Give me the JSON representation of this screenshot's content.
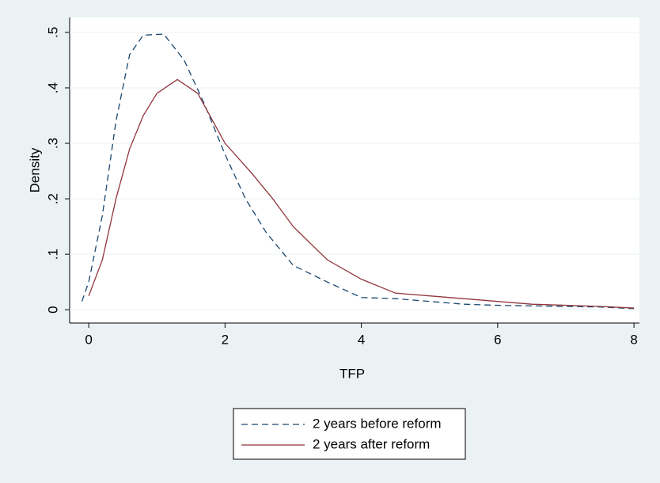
{
  "chart_data": {
    "type": "line",
    "x_label": "TFP",
    "y_label": "Density",
    "xlim": [
      -0.28,
      8.08
    ],
    "ylim": [
      -0.024,
      0.527
    ],
    "xticks": [
      0,
      2,
      4,
      6,
      8
    ],
    "yticks": [
      0,
      {
        "value": 0.1,
        "label": ".1"
      },
      {
        "value": 0.2,
        "label": ".2"
      },
      {
        "value": 0.3,
        "label": ".3"
      },
      {
        "value": 0.4,
        "label": ".4"
      },
      {
        "value": 0.5,
        "label": ".5"
      }
    ],
    "grid": true,
    "legend": "bottom",
    "series": [
      {
        "name": "2 years before reform",
        "color": "#1a476f",
        "dash": true,
        "x": [
          -0.1,
          0,
          0.2,
          0.4,
          0.6,
          0.8,
          1.1,
          1.4,
          1.7,
          2,
          2.3,
          2.6,
          3,
          3.5,
          4,
          4.5,
          5,
          5.5,
          6,
          6.5,
          7,
          7.5,
          8
        ],
        "values": [
          0.015,
          0.05,
          0.17,
          0.34,
          0.46,
          0.495,
          0.497,
          0.45,
          0.37,
          0.28,
          0.2,
          0.14,
          0.08,
          0.05,
          0.022,
          0.02,
          0.015,
          0.01,
          0.008,
          0.007,
          0.006,
          0.005,
          0.002
        ]
      },
      {
        "name": "2 years after reform",
        "color": "#90353b",
        "dash": false,
        "x": [
          0,
          0.2,
          0.4,
          0.6,
          0.8,
          1,
          1.3,
          1.6,
          2,
          2.4,
          2.7,
          3,
          3.5,
          4,
          4.5,
          5,
          5.5,
          6,
          6.5,
          7,
          7.5,
          8
        ],
        "values": [
          0.025,
          0.09,
          0.2,
          0.29,
          0.35,
          0.39,
          0.415,
          0.39,
          0.3,
          0.245,
          0.2,
          0.15,
          0.09,
          0.055,
          0.03,
          0.025,
          0.02,
          0.015,
          0.01,
          0.008,
          0.006,
          0.003
        ]
      }
    ]
  }
}
